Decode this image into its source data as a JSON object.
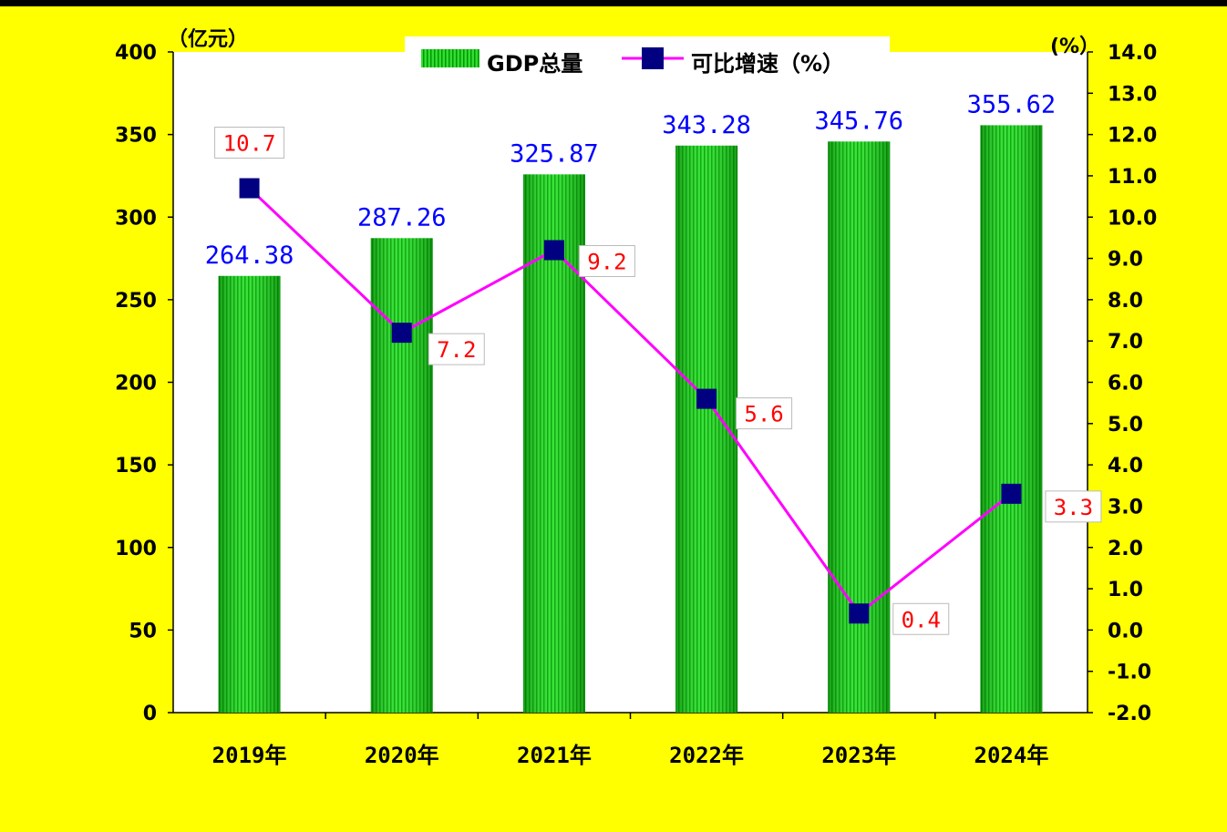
{
  "chart_data": {
    "type": "bar+line",
    "categories": [
      "2019年",
      "2020年",
      "2021年",
      "2022年",
      "2023年",
      "2024年"
    ],
    "series": [
      {
        "name": "GDP总量",
        "axis": "left",
        "type": "bar",
        "values": [
          264.38,
          287.26,
          325.87,
          343.28,
          345.76,
          355.62
        ],
        "labels": [
          "264.38",
          "287.26",
          "325.87",
          "343.28",
          "345.76",
          "355.62"
        ]
      },
      {
        "name": "可比增速（%）",
        "axis": "right",
        "type": "line",
        "values": [
          10.7,
          7.2,
          9.2,
          5.6,
          0.4,
          3.3
        ],
        "labels": [
          "10.7",
          "7.2",
          "9.2",
          "5.6",
          "0.4",
          "3.3"
        ]
      }
    ],
    "left_axis": {
      "unit": "（亿元）",
      "ylim": [
        0,
        400
      ],
      "ticks": [
        "0",
        "50",
        "100",
        "150",
        "200",
        "250",
        "300",
        "350",
        "400"
      ]
    },
    "right_axis": {
      "unit": "(%）",
      "ylim": [
        -2,
        14
      ],
      "ticks": [
        "-2.0",
        "-1.0",
        "0.0",
        "1.0",
        "2.0",
        "3.0",
        "4.0",
        "5.0",
        "6.0",
        "7.0",
        "8.0",
        "9.0",
        "10.0",
        "11.0",
        "12.0",
        "13.0",
        "14.0"
      ]
    },
    "legend": {
      "position": "top-center",
      "items": [
        "GDP总量",
        "可比增速（%）"
      ]
    },
    "grid": false
  },
  "colors": {
    "background": "#ffff00",
    "plot_area": "#ffffff",
    "bar": "#22cc22",
    "line": "#ff00ff",
    "marker": "#000080",
    "bar_label": "#0000ff",
    "point_label": "#ff0000"
  }
}
